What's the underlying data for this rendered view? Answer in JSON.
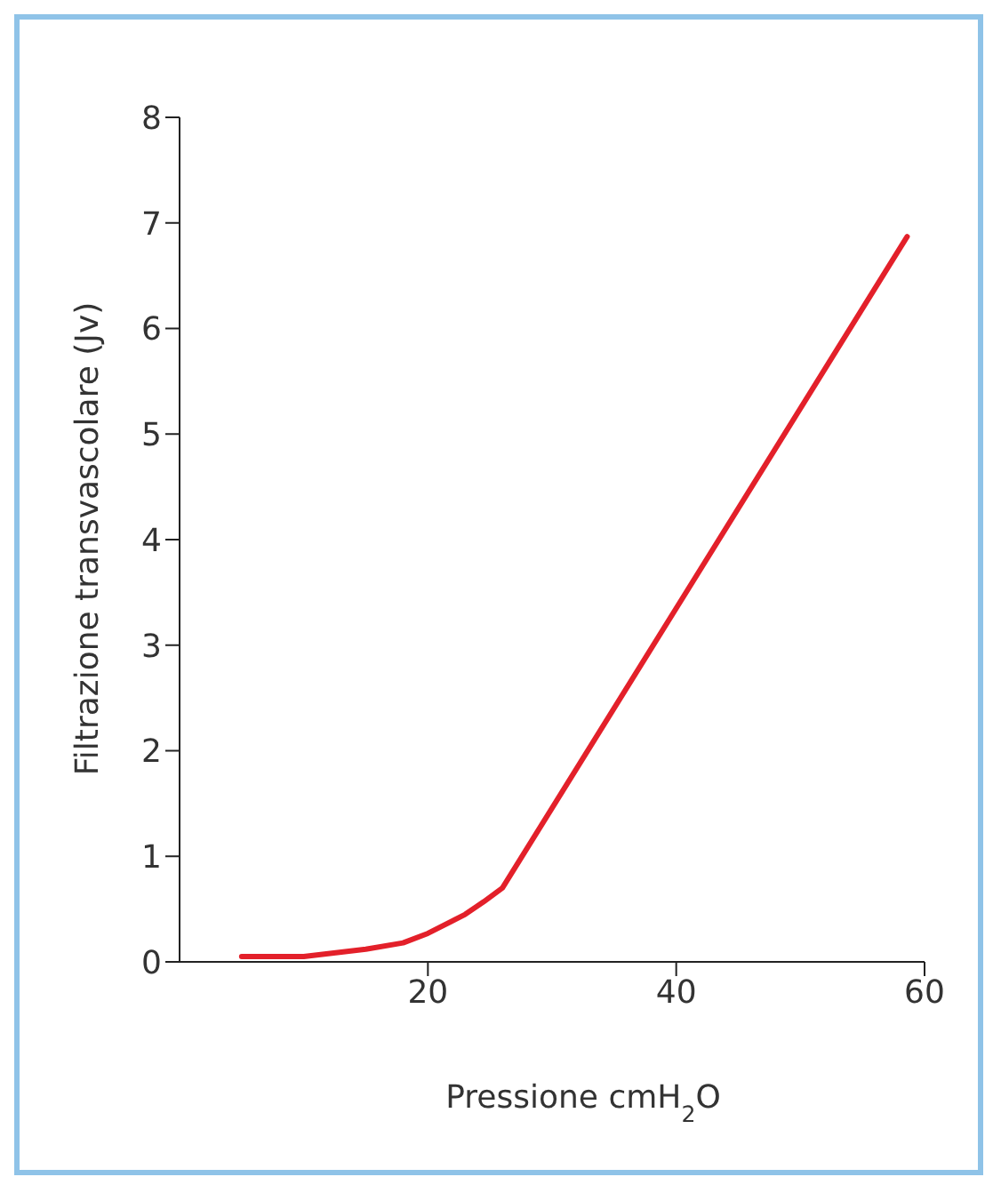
{
  "chart_data": {
    "type": "line",
    "xlabel": "Pressione cmH$_{2}$O",
    "ylabel": "Filtrazione transvascolare (Jv)",
    "x": [
      5,
      10,
      15,
      18,
      20,
      23,
      24.5,
      26,
      58.6
    ],
    "series": [
      {
        "color": "#e3202a",
        "values": [
          0.05,
          0.05,
          0.12,
          0.18,
          0.27,
          0.45,
          0.57,
          0.7,
          6.87
        ]
      }
    ],
    "xlim": [
      0,
      60
    ],
    "xticks": [
      20,
      40,
      60
    ],
    "ylim": [
      0,
      8
    ],
    "yticks": [
      0,
      1,
      2,
      3,
      4,
      5,
      6,
      7,
      8
    ],
    "grid": false,
    "legend": false,
    "marker": "none",
    "line_style": "solid"
  }
}
